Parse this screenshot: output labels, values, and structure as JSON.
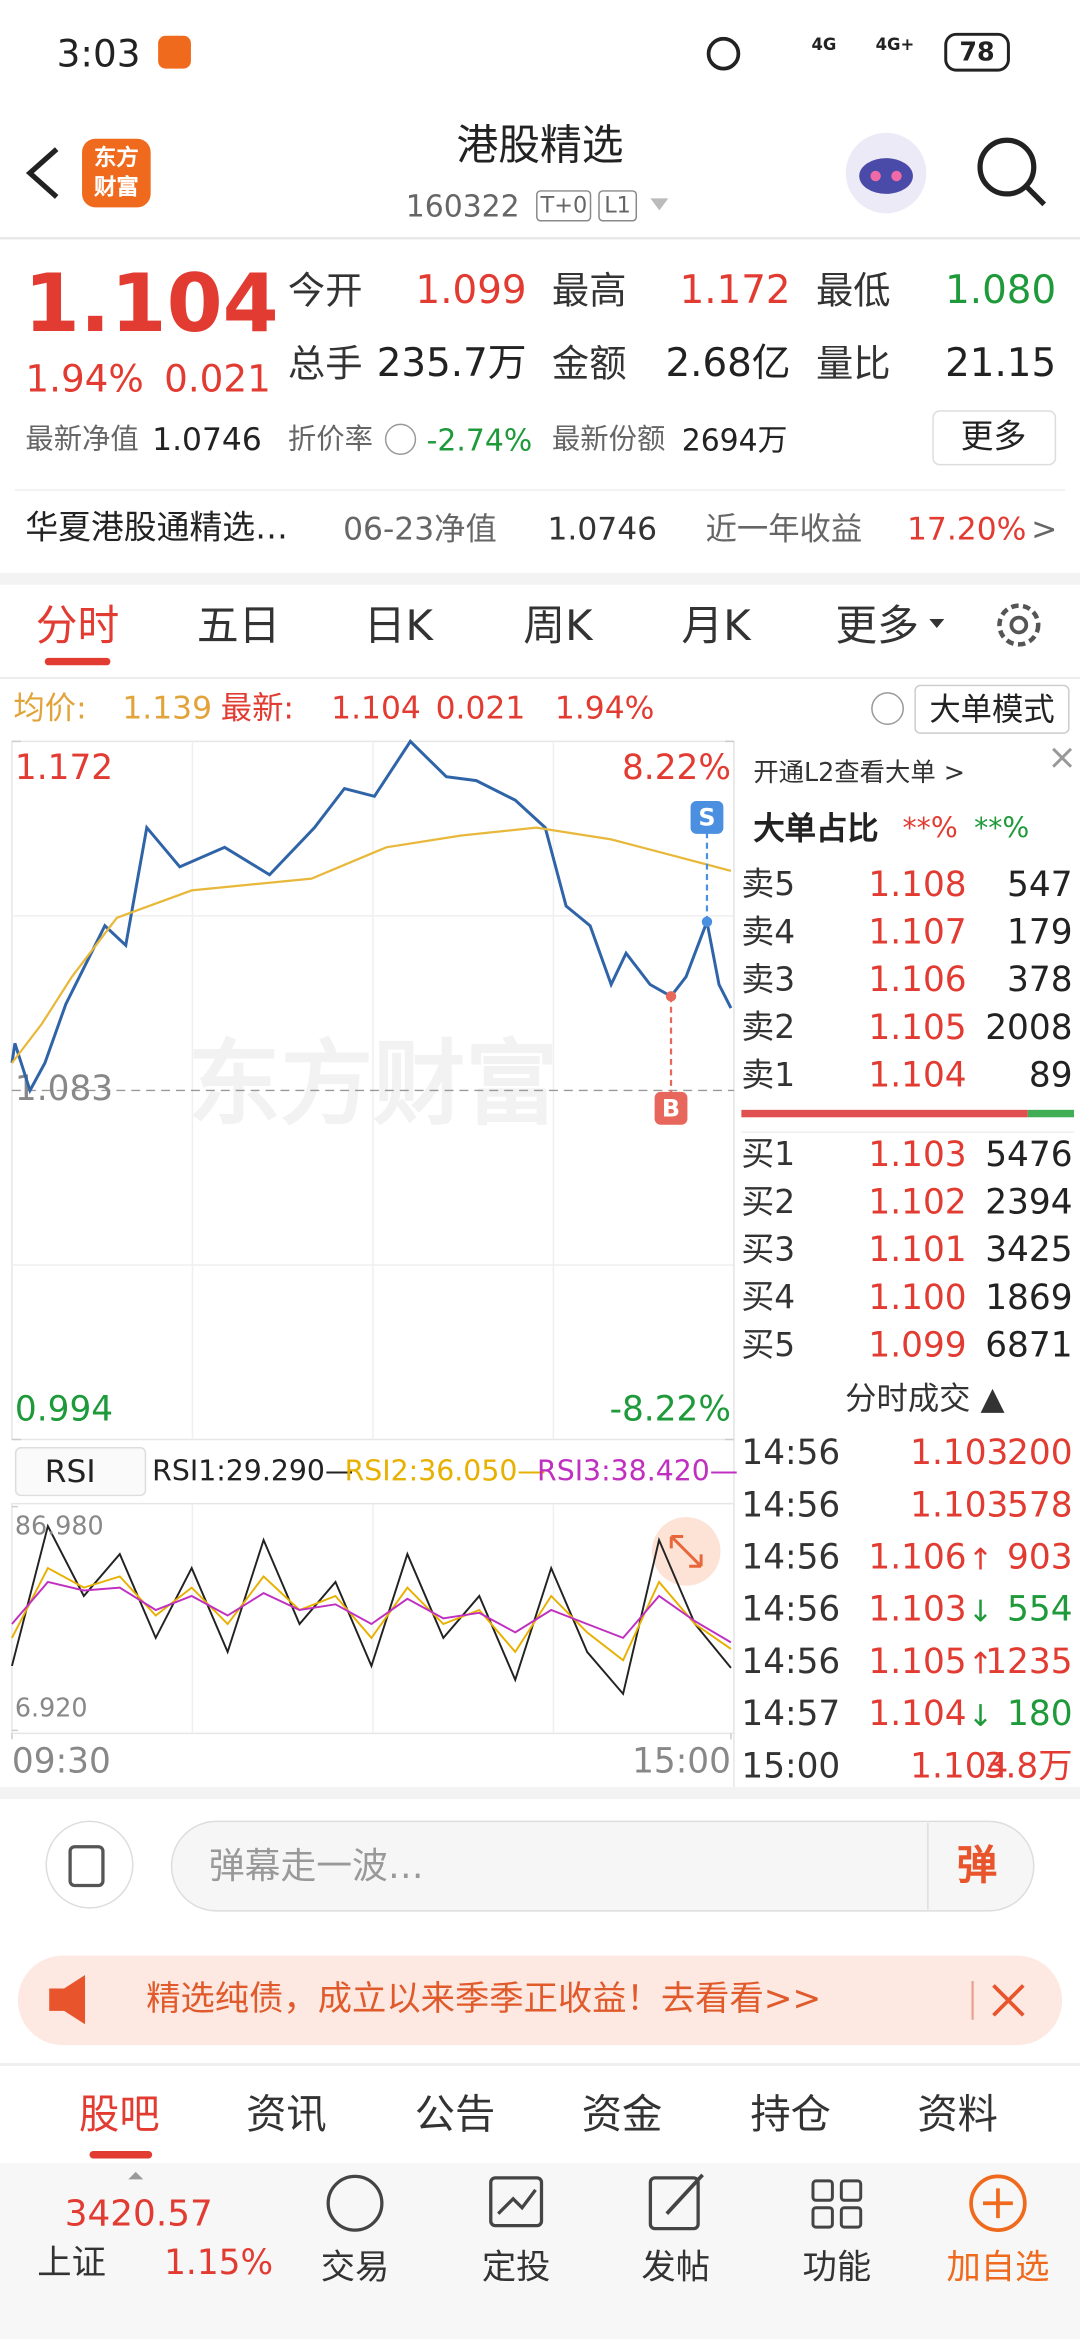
{
  "status_bar": {
    "time": "3:03",
    "network_1": "4G",
    "network_2": "4G+",
    "battery": "78"
  },
  "header": {
    "logo": [
      "东方",
      "财富"
    ],
    "title": "港股精选",
    "code": "160322",
    "tags": [
      "T+0",
      "L1"
    ]
  },
  "quote": {
    "price": "1.104",
    "change_pct": "1.94%",
    "change": "0.021",
    "stats": [
      [
        "今开",
        "1.099"
      ],
      [
        "最高",
        "1.172"
      ],
      [
        "最低",
        "1.080"
      ],
      [
        "总手",
        "235.7万"
      ],
      [
        "金额",
        "2.68亿"
      ],
      [
        "量比",
        "21.15"
      ]
    ],
    "nav_label": "最新净值",
    "nav": "1.0746",
    "discount_label": "折价率",
    "discount": "-2.74%",
    "share_label": "最新份额",
    "share": "2694万",
    "more": "更多"
  },
  "fund_bar": {
    "name": "华夏港股通精选…",
    "nav_date_label": "06-23净值",
    "nav": "1.0746",
    "yearly_label": "近一年收益",
    "yearly": "17.20%",
    "arrow": ">"
  },
  "tabs": {
    "items": [
      "分时",
      "五日",
      "日K",
      "周K",
      "月K",
      "更多"
    ]
  },
  "info_line": {
    "avg_label": "均价:",
    "avg": "1.139",
    "last_label": "最新:",
    "last": "1.104",
    "change": "0.021",
    "change_pct": "1.94%",
    "mode": "大单模式"
  },
  "chart_data": [
    {
      "type": "line",
      "watermark": "东方财富",
      "xlim": [
        0,
        240
      ],
      "xticks": [
        {
          "value": 0,
          "label": "09:30"
        },
        {
          "value": 240,
          "label": "15:00"
        }
      ],
      "ylim": [
        0.994,
        1.172
      ],
      "yticks": [
        {
          "value": 1.172,
          "label": "1.172"
        },
        {
          "value": 1.083,
          "label": "1.083"
        },
        {
          "value": 0.994,
          "label": "0.994"
        }
      ],
      "y2lim": [
        -8.22,
        8.22
      ],
      "y2ticks": [
        {
          "value": 8.22,
          "label": "8.22%"
        },
        {
          "value": -8.22,
          "label": "-8.22%"
        }
      ],
      "series": [
        {
          "color": "#2f64a8",
          "x": [
            0,
            1,
            6,
            11,
            18,
            31,
            38,
            45,
            56,
            71,
            86,
            101,
            111,
            121,
            133,
            145,
            155,
            168,
            178,
            185,
            193,
            200,
            205,
            213,
            220,
            225,
            232,
            236,
            240
          ],
          "values": [
            1.09,
            1.095,
            1.083,
            1.09,
            1.105,
            1.125,
            1.12,
            1.15,
            1.14,
            1.145,
            1.138,
            1.15,
            1.16,
            1.158,
            1.172,
            1.163,
            1.162,
            1.157,
            1.15,
            1.13,
            1.125,
            1.11,
            1.118,
            1.11,
            1.107,
            1.112,
            1.126,
            1.11,
            1.104
          ]
        },
        {
          "color": "#e8b83a",
          "x": [
            0,
            10,
            20,
            35,
            60,
            100,
            125,
            150,
            175,
            200,
            220,
            240
          ],
          "values": [
            1.09,
            1.1,
            1.112,
            1.127,
            1.134,
            1.137,
            1.145,
            1.148,
            1.15,
            1.147,
            1.143,
            1.139
          ]
        }
      ],
      "signals": [
        {
          "label": "S",
          "x": 232,
          "value": 1.126,
          "color": "#4a8fe0"
        },
        {
          "label": "B",
          "x": 220,
          "value": 1.107,
          "color": "#e8675c"
        }
      ]
    },
    {
      "type": "line",
      "indicator": "RSI",
      "readouts": [
        "RSI1:29.290—",
        "RSI2:36.050—",
        "RSI3:38.420—"
      ],
      "xlim": [
        0,
        240
      ],
      "ylim": [
        6.92,
        86.98
      ],
      "yticks": [
        {
          "value": 86.98,
          "label": "86.980"
        },
        {
          "value": 6.92,
          "label": "6.920"
        }
      ],
      "x": [
        0,
        12,
        24,
        36,
        48,
        60,
        72,
        84,
        96,
        108,
        120,
        132,
        144,
        156,
        168,
        180,
        192,
        204,
        216,
        228,
        240
      ],
      "series": [
        {
          "color": "#222222",
          "values": [
            30,
            80,
            55,
            70,
            40,
            65,
            35,
            75,
            45,
            60,
            30,
            70,
            40,
            55,
            25,
            65,
            35,
            20,
            75,
            45,
            29.29
          ]
        },
        {
          "color": "#e8b000",
          "values": [
            40,
            65,
            58,
            62,
            48,
            58,
            45,
            62,
            50,
            55,
            40,
            58,
            45,
            50,
            35,
            55,
            42,
            32,
            60,
            45,
            36.05
          ]
        },
        {
          "color": "#c030c0",
          "values": [
            45,
            60,
            57,
            58,
            50,
            55,
            48,
            56,
            50,
            52,
            45,
            54,
            47,
            49,
            42,
            50,
            45,
            40,
            55,
            46,
            38.42
          ]
        }
      ]
    }
  ],
  "order_book": {
    "promo": "开通L2查看大单 >",
    "ratio_label": "大单占比",
    "ratio_a": "**%",
    "ratio_b": "**%",
    "asks": [
      [
        "卖5",
        "1.108",
        "547"
      ],
      [
        "卖4",
        "1.107",
        "179"
      ],
      [
        "卖3",
        "1.106",
        "378"
      ],
      [
        "卖2",
        "1.105",
        "2008"
      ],
      [
        "卖1",
        "1.104",
        "89"
      ]
    ],
    "bids": [
      [
        "买1",
        "1.103",
        "5476"
      ],
      [
        "买2",
        "1.102",
        "2394"
      ],
      [
        "买3",
        "1.101",
        "3425"
      ],
      [
        "买4",
        "1.100",
        "1869"
      ],
      [
        "买5",
        "1.099",
        "6871"
      ]
    ]
  },
  "trades": {
    "title": "分时成交 ▲",
    "rows": [
      {
        "time": "14:56",
        "price": "1.103",
        "volume": "200"
      },
      {
        "time": "14:56",
        "price": "1.103",
        "volume": "578"
      },
      {
        "time": "14:56",
        "price": "1.106",
        "dir": "↑",
        "volume": "903"
      },
      {
        "time": "14:56",
        "price": "1.103",
        "dir": "↓",
        "volume": "554"
      },
      {
        "time": "14:56",
        "price": "1.105",
        "dir": "↑",
        "volume": "1235"
      },
      {
        "time": "14:57",
        "price": "1.104",
        "dir": "↓",
        "volume": "180"
      },
      {
        "time": "15:00",
        "price": "1.104",
        "volume": "3.8万"
      }
    ]
  },
  "danmaku": {
    "placeholder": "弹幕走一波…",
    "button": "弹"
  },
  "banner": {
    "text": "精选纯债，成立以来季季正收益！去看看>>"
  },
  "bottom_tabs": {
    "items": [
      "股吧",
      "资讯",
      "公告",
      "资金",
      "持仓",
      "资料"
    ]
  },
  "footer": {
    "index_value": "3420.57",
    "index_name": "上证",
    "index_pct": "1.15%",
    "actions": [
      "交易",
      "定投",
      "发帖",
      "功能",
      "加自选"
    ]
  }
}
